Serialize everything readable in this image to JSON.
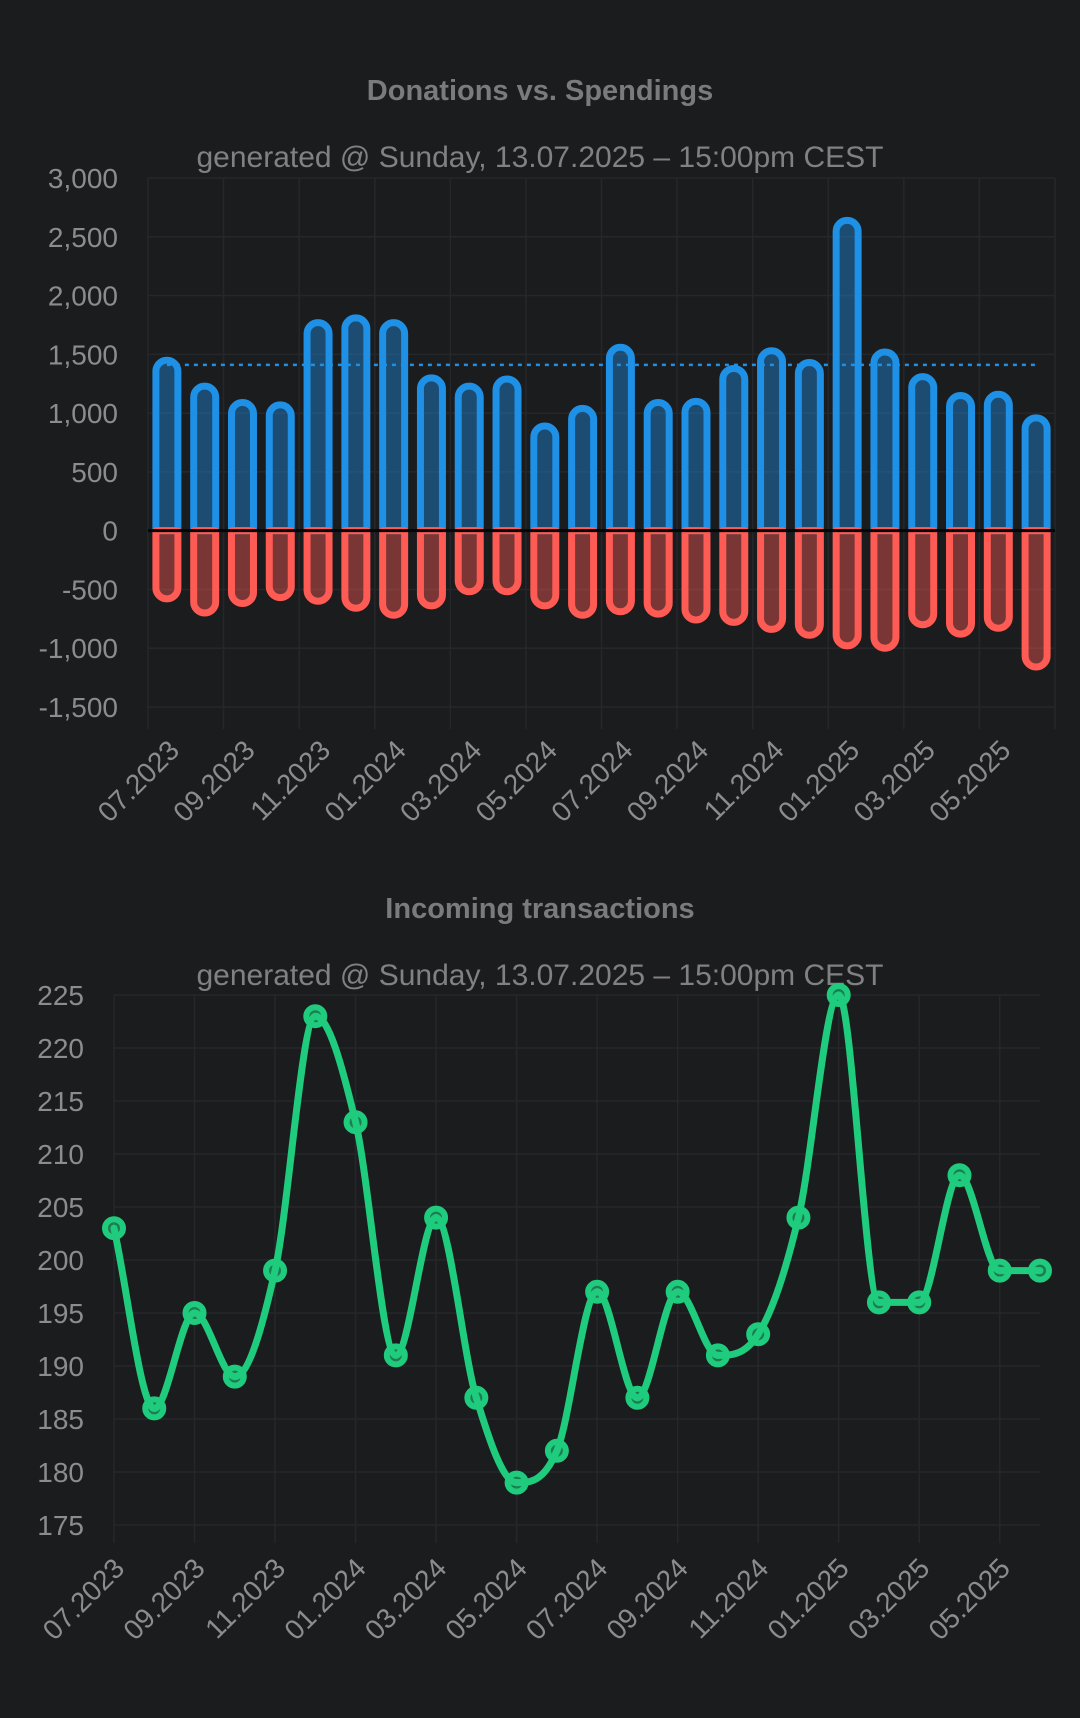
{
  "chart_data": [
    {
      "type": "bar",
      "title": "Donations vs. Spendings",
      "subtitle": "generated @ Sunday, 13.07.2025 – 15:00pm CEST",
      "xlabel": "",
      "ylabel": "",
      "categories": [
        "07.2023",
        "08.2023",
        "09.2023",
        "10.2023",
        "11.2023",
        "12.2023",
        "01.2024",
        "02.2024",
        "03.2024",
        "04.2024",
        "05.2024",
        "06.2024",
        "07.2024",
        "08.2024",
        "09.2024",
        "10.2024",
        "11.2024",
        "12.2024",
        "01.2025",
        "02.2025",
        "03.2025",
        "04.2025",
        "05.2025",
        "06.2025"
      ],
      "x_tick_labels": [
        "07.2023",
        "09.2023",
        "11.2023",
        "01.2024",
        "03.2024",
        "05.2024",
        "07.2024",
        "09.2024",
        "11.2024",
        "01.2025",
        "03.2025",
        "05.2025"
      ],
      "y_tick_labels": [
        "3,000",
        "2,500",
        "2,000",
        "1,500",
        "1,000",
        "500",
        "0",
        "-500",
        "-1,000",
        "-1,500"
      ],
      "series": [
        {
          "values": [
            1450,
            1230,
            1090,
            1070,
            1770,
            1810,
            1770,
            1300,
            1230,
            1290,
            890,
            1040,
            1560,
            1090,
            1100,
            1380,
            1530,
            1430,
            2640,
            1520,
            1310,
            1150,
            1160,
            960
          ],
          "color": "#1e90e6"
        },
        {
          "values": [
            -580,
            -700,
            -620,
            -570,
            -600,
            -660,
            -720,
            -640,
            -520,
            -520,
            -640,
            -720,
            -690,
            -710,
            -760,
            -780,
            -840,
            -890,
            -980,
            -1000,
            -800,
            -880,
            -830,
            -1160
          ],
          "color": "#ff5b55"
        }
      ],
      "reference_line": {
        "value": 1410,
        "color": "#1e90e6",
        "style": "dotted"
      },
      "ylim": [
        -1500,
        3000
      ],
      "grid": true,
      "legend": "none"
    },
    {
      "type": "line",
      "title": "Incoming transactions",
      "subtitle": "generated @ Sunday, 13.07.2025 – 15:00pm CEST",
      "xlabel": "",
      "ylabel": "",
      "x": [
        "07.2023",
        "08.2023",
        "09.2023",
        "10.2023",
        "11.2023",
        "12.2023",
        "01.2024",
        "02.2024",
        "03.2024",
        "04.2024",
        "05.2024",
        "06.2024",
        "07.2024",
        "08.2024",
        "09.2024",
        "10.2024",
        "11.2024",
        "12.2024",
        "01.2025",
        "02.2025",
        "03.2025",
        "04.2025",
        "05.2025",
        "06.2025"
      ],
      "x_tick_labels": [
        "07.2023",
        "09.2023",
        "11.2023",
        "01.2024",
        "03.2024",
        "05.2024",
        "07.2024",
        "09.2024",
        "11.2024",
        "01.2025",
        "03.2025",
        "05.2025"
      ],
      "y_tick_labels": [
        "225",
        "220",
        "215",
        "210",
        "205",
        "200",
        "195",
        "190",
        "185",
        "180",
        "175"
      ],
      "series": [
        {
          "values": [
            203,
            186,
            195,
            189,
            199,
            223,
            213,
            191,
            204,
            187,
            179,
            182,
            197,
            187,
            197,
            191,
            193,
            204,
            225,
            196,
            196,
            208,
            199,
            199
          ],
          "color": "#1fcc7d"
        }
      ],
      "ylim": [
        175,
        225
      ],
      "grid": true,
      "legend": "none"
    }
  ]
}
